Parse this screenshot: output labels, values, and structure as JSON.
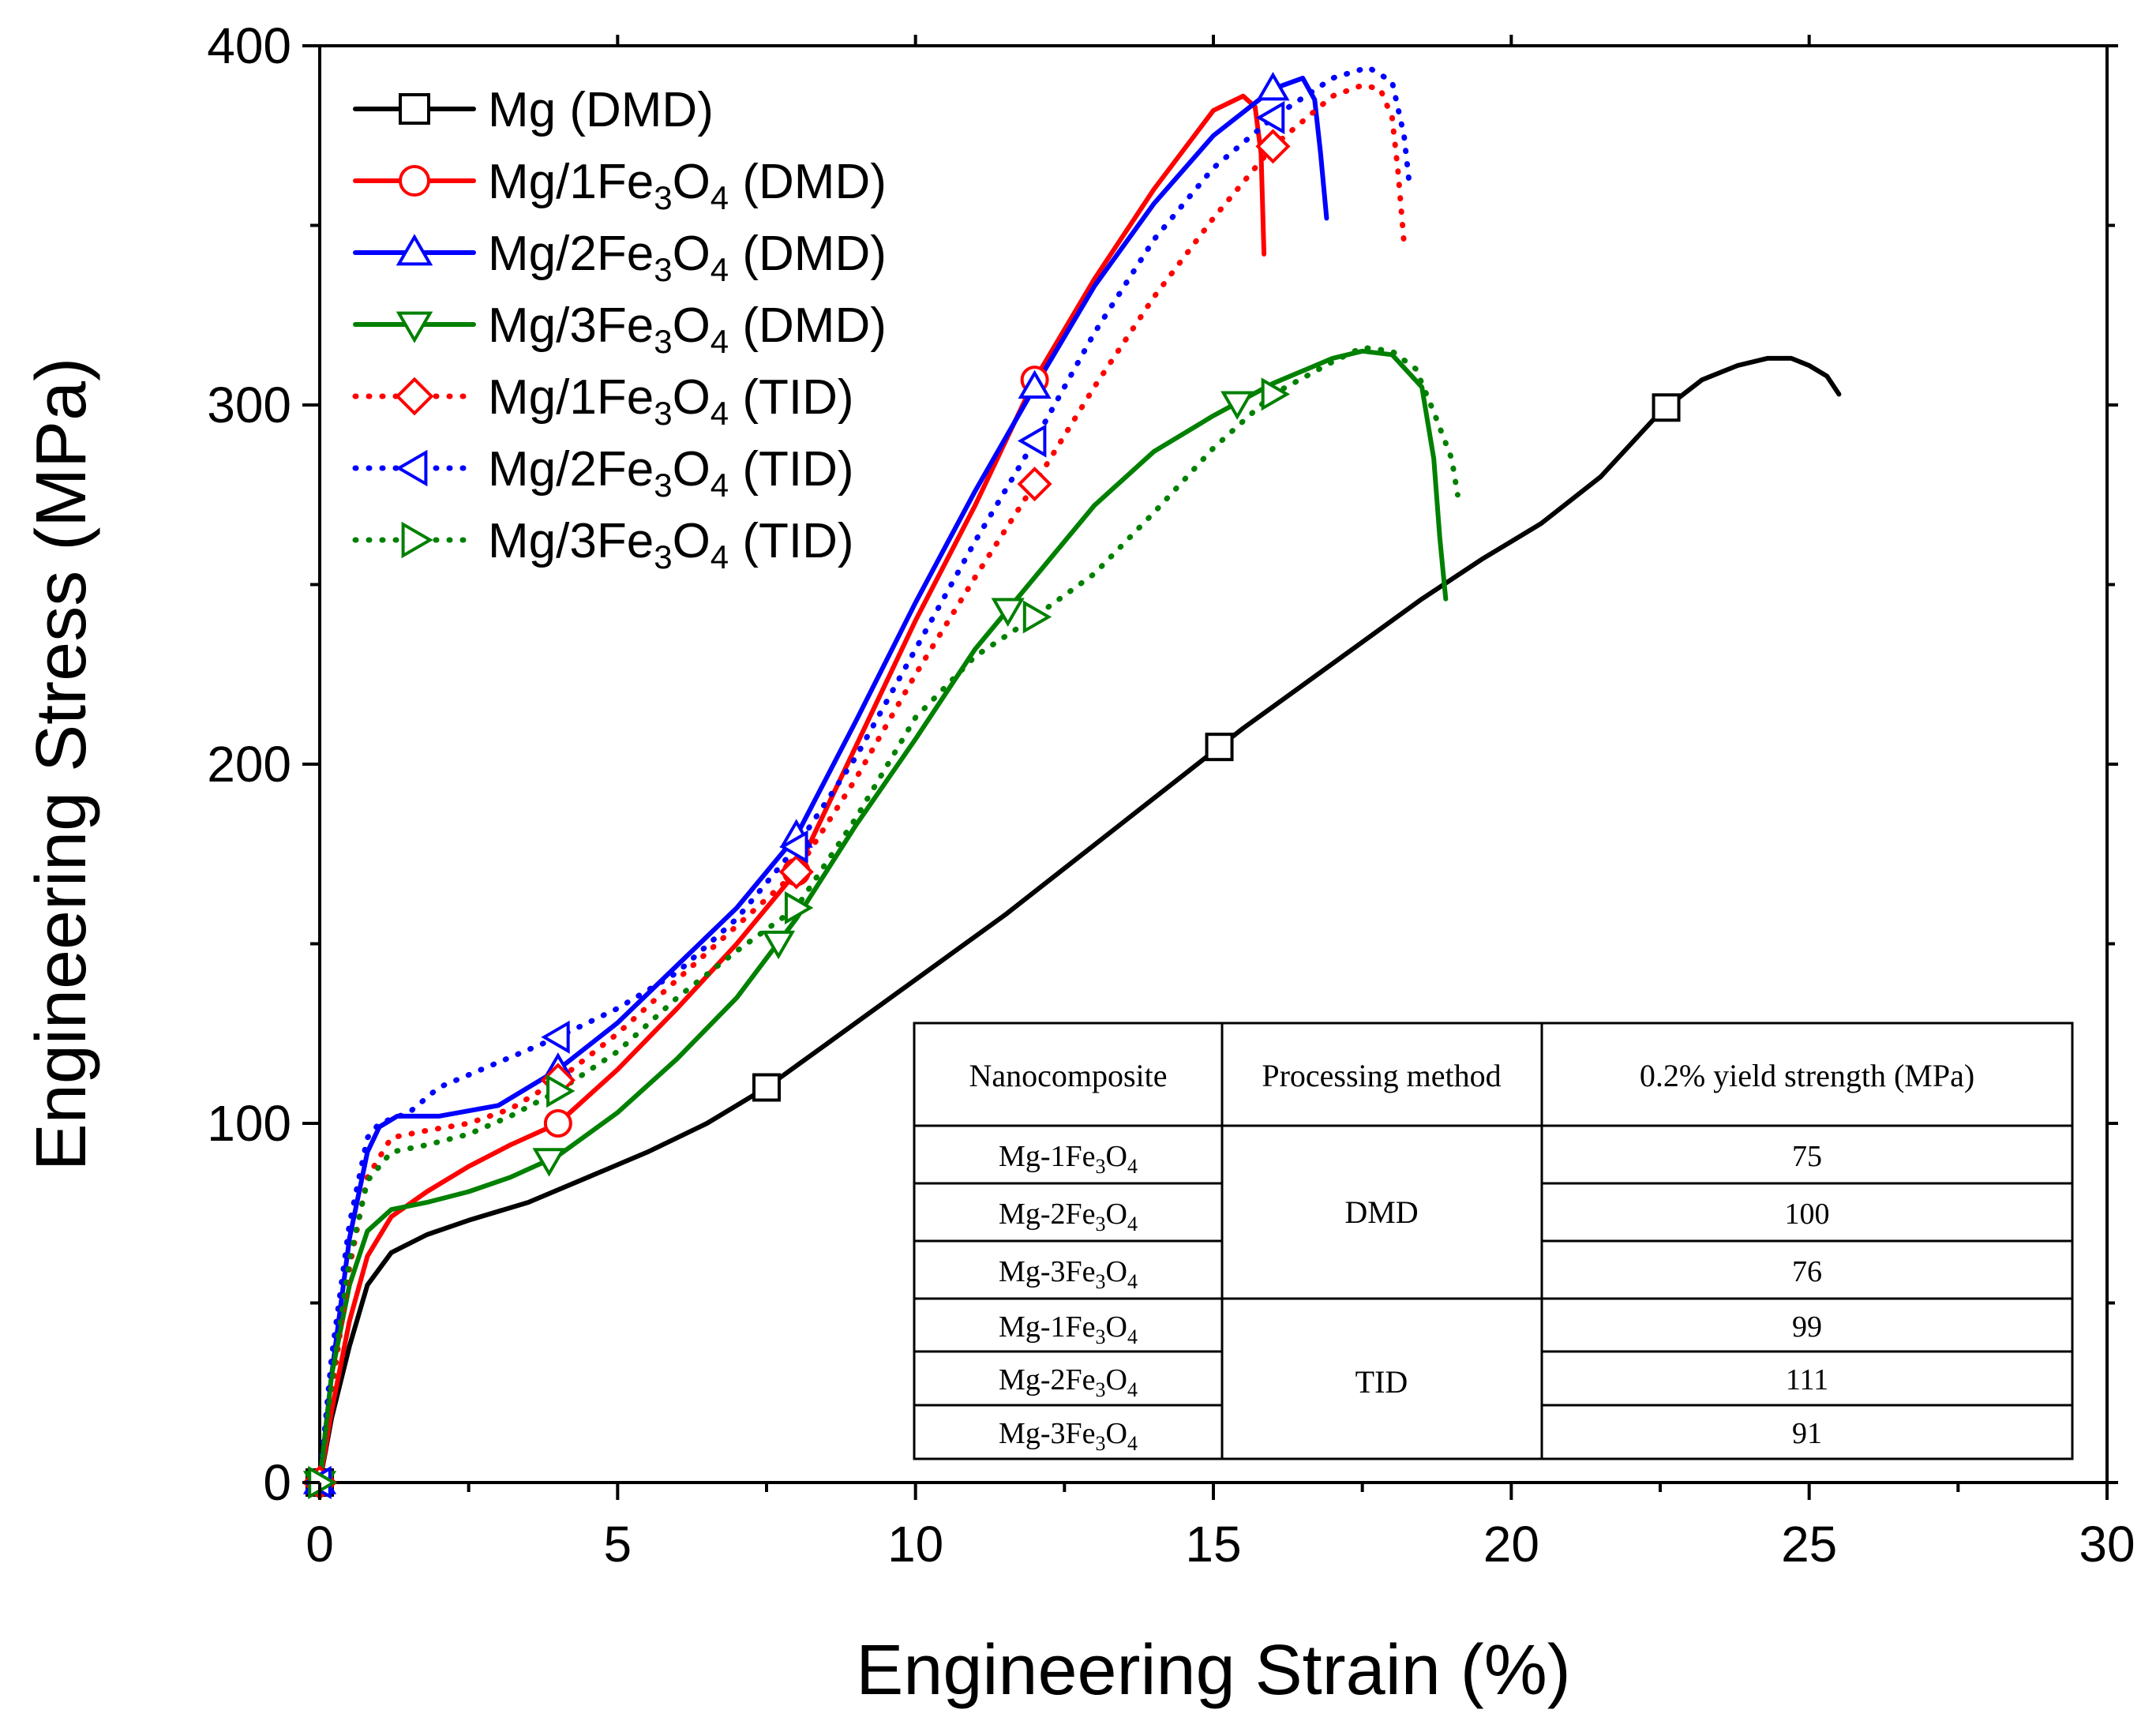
{
  "chart_data": {
    "type": "line",
    "title": "",
    "xlabel": "Engineering Strain (%)",
    "ylabel": "Engineering Stress (MPa)",
    "xlim": [
      0,
      30
    ],
    "ylim": [
      0,
      400
    ],
    "xticks": [
      0,
      5,
      10,
      15,
      20,
      25,
      30
    ],
    "yticks": [
      0,
      100,
      200,
      300,
      400
    ],
    "grid": false,
    "legend_position": "top-left",
    "series": [
      {
        "name": "Mg (DMD)",
        "name_main": "Mg",
        "name_sub": "",
        "name_tail": " (DMD)",
        "color": "#000000",
        "style": "solid",
        "marker": "square",
        "x": [
          0,
          0.2,
          0.5,
          0.8,
          1.2,
          1.8,
          2.5,
          3.5,
          4.5,
          5.5,
          6.5,
          7.5,
          8.5,
          9.5,
          10.5,
          11.5,
          12.5,
          13.5,
          14.5,
          15.5,
          16.5,
          17.5,
          18.5,
          19.5,
          20.5,
          21.5,
          22.5,
          23.2,
          23.8,
          24.3,
          24.7,
          25.0,
          25.3,
          25.5
        ],
        "y": [
          0,
          18,
          38,
          55,
          64,
          69,
          73,
          78,
          85,
          92,
          100,
          110,
          122,
          134,
          146,
          158,
          171,
          184,
          197,
          210,
          222,
          234,
          246,
          257,
          267,
          280,
          298,
          307,
          311,
          313,
          313,
          311,
          308,
          303
        ],
        "marker_x": [
          0,
          7.5,
          15.1,
          22.6
        ]
      },
      {
        "name": "Mg/1Fe3O4 (DMD)",
        "name_main": "Mg/1Fe",
        "name_sub": "3",
        "name_mid": "O",
        "name_sub2": "4",
        "name_tail": " (DMD)",
        "color": "#ff0000",
        "style": "solid",
        "marker": "circle",
        "x": [
          0,
          0.2,
          0.5,
          0.8,
          1.2,
          1.8,
          2.5,
          3.2,
          4.0,
          5.0,
          6.0,
          7.0,
          8.0,
          9.0,
          10.0,
          11.0,
          12.0,
          13.0,
          14.0,
          15.0,
          15.5,
          15.7,
          15.8,
          15.85
        ],
        "y": [
          0,
          20,
          45,
          63,
          74,
          81,
          88,
          94,
          100,
          115,
          132,
          150,
          170,
          205,
          240,
          272,
          307,
          335,
          360,
          382,
          386,
          383,
          370,
          342
        ],
        "marker_x": [
          0,
          4.0,
          8.0,
          12.0
        ]
      },
      {
        "name": "Mg/2Fe3O4 (DMD)",
        "name_main": "Mg/2Fe",
        "name_sub": "3",
        "name_mid": "O",
        "name_sub2": "4",
        "name_tail": " (DMD)",
        "color": "#0000ff",
        "style": "solid",
        "marker": "triangle-up",
        "x": [
          0,
          0.2,
          0.5,
          0.8,
          1.0,
          1.3,
          2.0,
          3.0,
          4.0,
          5.0,
          6.0,
          7.0,
          8.0,
          9.0,
          10.0,
          11.0,
          12.0,
          13.0,
          14.0,
          15.0,
          16.0,
          16.5,
          16.7,
          16.8,
          16.9
        ],
        "y": [
          0,
          30,
          68,
          92,
          99,
          102,
          102,
          105,
          115,
          128,
          144,
          160,
          180,
          212,
          245,
          276,
          305,
          333,
          356,
          375,
          388,
          391,
          385,
          370,
          352
        ],
        "marker_x": [
          0,
          4.0,
          8.0,
          12.0,
          16.0
        ]
      },
      {
        "name": "Mg/3Fe3O4 (DMD)",
        "name_main": "Mg/3Fe",
        "name_sub": "3",
        "name_mid": "O",
        "name_sub2": "4",
        "name_tail": " (DMD)",
        "color": "#008000",
        "style": "solid",
        "marker": "triangle-down",
        "x": [
          0,
          0.2,
          0.5,
          0.8,
          1.2,
          1.8,
          2.5,
          3.2,
          4.0,
          5.0,
          6.0,
          7.0,
          8.0,
          9.0,
          10.0,
          11.0,
          12.0,
          13.0,
          14.0,
          15.0,
          16.0,
          17.0,
          17.5,
          18.0,
          18.5,
          18.7,
          18.8,
          18.9
        ],
        "y": [
          0,
          30,
          55,
          70,
          76,
          78,
          81,
          85,
          91,
          103,
          118,
          135,
          157,
          183,
          207,
          232,
          252,
          272,
          287,
          297,
          306,
          313,
          315,
          314,
          305,
          285,
          263,
          246
        ],
        "marker_x": [
          0,
          3.85,
          7.7,
          11.55,
          15.4
        ]
      },
      {
        "name": "Mg/1Fe3O4 (TID)",
        "name_main": "Mg/1Fe",
        "name_sub": "3",
        "name_mid": "O",
        "name_sub2": "4",
        "name_tail": " (TID)",
        "color": "#ff0000",
        "style": "dotted",
        "marker": "diamond",
        "x": [
          0,
          0.2,
          0.5,
          0.8,
          1.2,
          1.8,
          2.5,
          3.2,
          4.0,
          5.0,
          6.0,
          7.0,
          8.0,
          9.0,
          10.0,
          11.0,
          12.0,
          13.0,
          14.0,
          15.0,
          16.0,
          17.0,
          17.5,
          17.8,
          18.0,
          18.1,
          18.2
        ],
        "y": [
          0,
          25,
          60,
          85,
          96,
          98,
          100,
          104,
          112,
          125,
          140,
          155,
          170,
          196,
          225,
          252,
          278,
          305,
          330,
          352,
          372,
          386,
          389,
          388,
          380,
          365,
          345
        ],
        "marker_x": [
          0,
          4.0,
          8.0,
          12.0,
          16.0
        ]
      },
      {
        "name": "Mg/2Fe3O4 (TID)",
        "name_main": "Mg/2Fe",
        "name_sub": "3",
        "name_mid": "O",
        "name_sub2": "4",
        "name_tail": " (TID)",
        "color": "#0000ff",
        "style": "dotted",
        "marker": "triangle-left",
        "x": [
          0,
          0.2,
          0.5,
          0.8,
          1.0,
          1.5,
          2.0,
          3.0,
          4.0,
          5.0,
          6.0,
          7.0,
          8.0,
          9.0,
          10.0,
          11.0,
          12.0,
          13.0,
          14.0,
          15.0,
          16.0,
          17.0,
          17.6,
          18.0,
          18.2,
          18.3
        ],
        "y": [
          0,
          35,
          72,
          96,
          100,
          103,
          110,
          117,
          124,
          132,
          142,
          157,
          177,
          202,
          232,
          262,
          290,
          320,
          346,
          366,
          380,
          391,
          394,
          390,
          375,
          360
        ],
        "marker_x": [
          0,
          4.0,
          8.0,
          12.0,
          16.0
        ]
      },
      {
        "name": "Mg/3Fe3O4 (TID)",
        "name_main": "Mg/3Fe",
        "name_sub": "3",
        "name_mid": "O",
        "name_sub2": "4",
        "name_tail": " (TID)",
        "color": "#008000",
        "style": "dotted",
        "marker": "triangle-right",
        "x": [
          0,
          0.2,
          0.5,
          0.8,
          1.2,
          1.8,
          2.5,
          3.2,
          4.0,
          5.0,
          6.0,
          7.0,
          8.0,
          9.0,
          10.0,
          11.0,
          12.0,
          13.0,
          14.0,
          15.0,
          16.0,
          17.0,
          17.5,
          18.0,
          18.4,
          18.7,
          19.0,
          19.1
        ],
        "y": [
          0,
          28,
          62,
          84,
          92,
          94,
          97,
          102,
          109,
          120,
          135,
          148,
          160,
          185,
          213,
          230,
          241,
          253,
          270,
          288,
          303,
          312,
          316,
          315,
          310,
          298,
          285,
          275
        ],
        "marker_x": [
          0,
          4.0,
          8.0,
          12.0,
          16.0
        ]
      }
    ],
    "inset_table": {
      "headers": [
        "Nanocomposite",
        "Processing method",
        "0.2% yield strength (MPa)"
      ],
      "rows": [
        {
          "material_main": "Mg-1Fe",
          "sub1": "3",
          "mid": "O",
          "sub2": "4",
          "method": "DMD",
          "yield": "75"
        },
        {
          "material_main": "Mg-2Fe",
          "sub1": "3",
          "mid": "O",
          "sub2": "4",
          "method": "DMD",
          "yield": "100"
        },
        {
          "material_main": "Mg-3Fe",
          "sub1": "3",
          "mid": "O",
          "sub2": "4",
          "method": "DMD",
          "yield": "76"
        },
        {
          "material_main": "Mg-1Fe",
          "sub1": "3",
          "mid": "O",
          "sub2": "4",
          "method": "TID",
          "yield": "99"
        },
        {
          "material_main": "Mg-2Fe",
          "sub1": "3",
          "mid": "O",
          "sub2": "4",
          "method": "TID",
          "yield": "111"
        },
        {
          "material_main": "Mg-3Fe",
          "sub1": "3",
          "mid": "O",
          "sub2": "4",
          "method": "TID",
          "yield": "91"
        }
      ]
    }
  }
}
